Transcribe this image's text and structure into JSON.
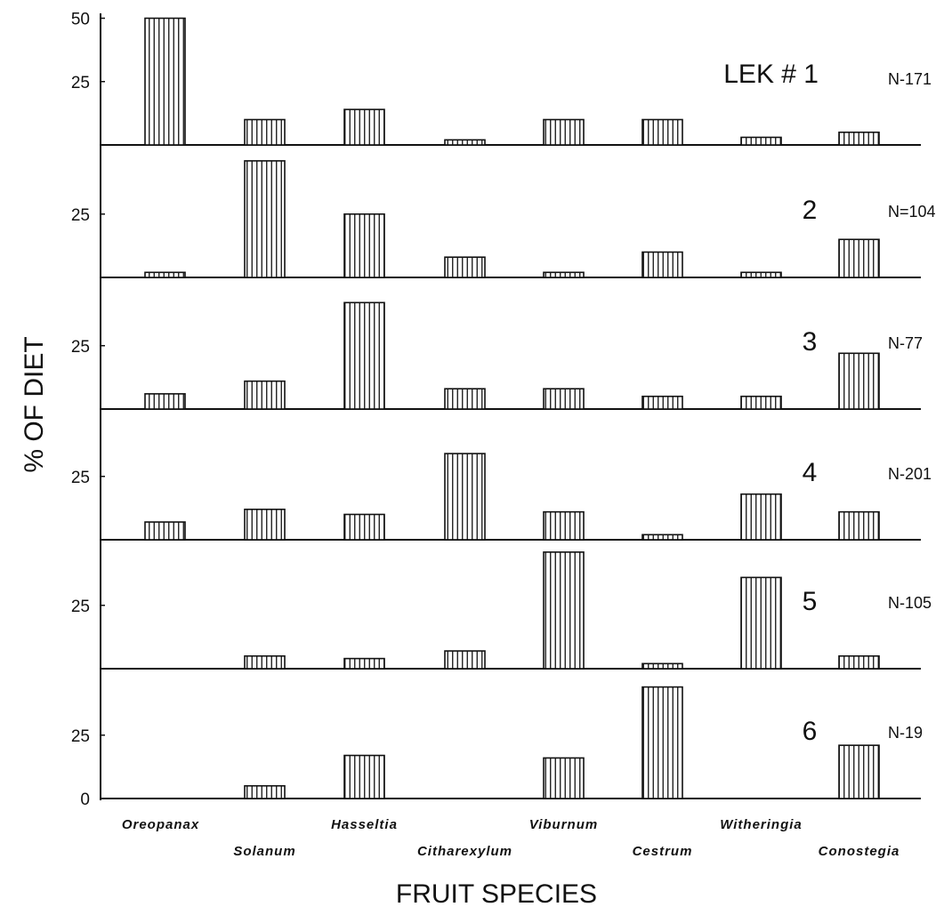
{
  "chart_data": {
    "type": "bar",
    "xlabel": "FRUIT SPECIES",
    "ylabel": "% OF DIET",
    "categories": [
      "Oreopanax",
      "Solanum",
      "Hasseltia",
      "Citharexylum",
      "Viburnum",
      "Cestrum",
      "Witheringia",
      "Conostegia"
    ],
    "panels": [
      {
        "label": "LEK # 1",
        "n": "N-171",
        "ticks": [
          "50",
          "25"
        ],
        "values": [
          50,
          10,
          14,
          2,
          10,
          10,
          3,
          5
        ]
      },
      {
        "label": "2",
        "n": "N=104",
        "ticks": [
          "25"
        ],
        "values": [
          2,
          46,
          25,
          8,
          2,
          10,
          2,
          15
        ]
      },
      {
        "label": "3",
        "n": "N-77",
        "ticks": [
          "25"
        ],
        "values": [
          6,
          11,
          42,
          8,
          8,
          5,
          5,
          22
        ]
      },
      {
        "label": "4",
        "n": "N-201",
        "ticks": [
          "25"
        ],
        "values": [
          7,
          12,
          10,
          34,
          11,
          2,
          18,
          11
        ]
      },
      {
        "label": "5",
        "n": "N-105",
        "ticks": [
          "25"
        ],
        "values": [
          0,
          5,
          4,
          7,
          46,
          2,
          36,
          5
        ]
      },
      {
        "label": "6",
        "n": "N-19",
        "ticks": [
          "25",
          "0"
        ],
        "values": [
          0,
          5,
          17,
          0,
          16,
          44,
          0,
          21
        ]
      }
    ],
    "bar_pattern": "vertical-hatch",
    "grid": false
  }
}
